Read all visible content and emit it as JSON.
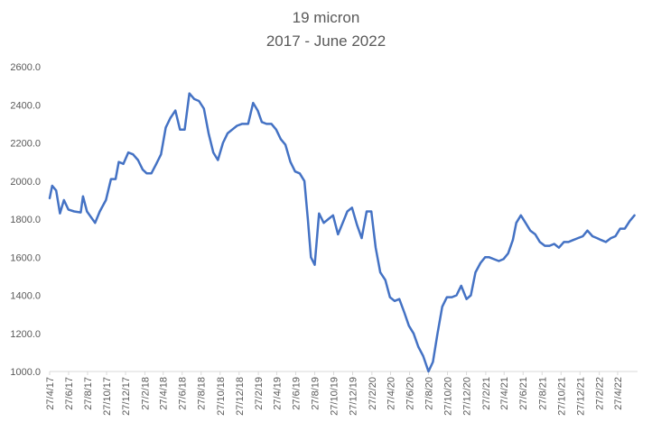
{
  "chart_data": {
    "type": "line",
    "title": "19 micron",
    "subtitle": "2017 - June 2022",
    "xlabel": "",
    "ylabel": "",
    "ylim": [
      1000,
      2600
    ],
    "yticks": [
      "1000.0",
      "1200.0",
      "1400.0",
      "1600.0",
      "1800.0",
      "2000.0",
      "2200.0",
      "2400.0",
      "2600.0"
    ],
    "xlim": [
      "2017-04-27",
      "2022-06-30"
    ],
    "xticks": [
      "27/4/17",
      "27/6/17",
      "27/8/17",
      "27/10/17",
      "27/12/17",
      "27/2/18",
      "27/4/18",
      "27/6/18",
      "27/8/18",
      "27/10/18",
      "27/12/18",
      "27/2/19",
      "27/4/19",
      "27/6/19",
      "27/8/19",
      "27/10/19",
      "27/12/19",
      "27/2/20",
      "27/4/20",
      "27/6/20",
      "27/8/20",
      "27/10/20",
      "27/12/20",
      "27/2/21",
      "27/4/21",
      "27/6/21",
      "27/8/21",
      "27/10/21",
      "27/12/21",
      "27/2/22",
      "27/4/22"
    ],
    "grid": false,
    "legend": "none",
    "line_color": "#4472c4",
    "series": [
      {
        "x": [
          "2017-04-27",
          "2017-05-05",
          "2017-05-18",
          "2017-05-30",
          "2017-06-12",
          "2017-06-26",
          "2017-07-15",
          "2017-08-05",
          "2017-08-12",
          "2017-08-25",
          "2017-09-20",
          "2017-10-05",
          "2017-10-25",
          "2017-11-10",
          "2017-11-25",
          "2017-12-05",
          "2017-12-20",
          "2018-01-05",
          "2018-01-20",
          "2018-02-05",
          "2018-02-20",
          "2018-03-05",
          "2018-03-20",
          "2018-04-05",
          "2018-04-20",
          "2018-05-05",
          "2018-05-20",
          "2018-06-05",
          "2018-06-20",
          "2018-07-05",
          "2018-07-20",
          "2018-08-05",
          "2018-08-20",
          "2018-09-05",
          "2018-09-20",
          "2018-10-05",
          "2018-10-20",
          "2018-11-05",
          "2018-11-20",
          "2018-12-05",
          "2018-12-20",
          "2019-01-05",
          "2019-01-25",
          "2019-02-10",
          "2019-02-25",
          "2019-03-10",
          "2019-03-25",
          "2019-04-10",
          "2019-04-25",
          "2019-05-10",
          "2019-05-25",
          "2019-06-10",
          "2019-06-25",
          "2019-07-10",
          "2019-07-25",
          "2019-08-05",
          "2019-08-15",
          "2019-08-27",
          "2019-09-10",
          "2019-09-25",
          "2019-10-10",
          "2019-10-25",
          "2019-11-10",
          "2019-11-25",
          "2019-12-10",
          "2019-12-25",
          "2020-01-10",
          "2020-01-25",
          "2020-02-10",
          "2020-02-25",
          "2020-03-10",
          "2020-03-25",
          "2020-04-10",
          "2020-04-25",
          "2020-05-10",
          "2020-05-25",
          "2020-06-10",
          "2020-06-25",
          "2020-07-10",
          "2020-07-25",
          "2020-08-10",
          "2020-08-27",
          "2020-09-10",
          "2020-09-25",
          "2020-10-10",
          "2020-10-25",
          "2020-11-10",
          "2020-11-25",
          "2020-12-10",
          "2020-12-27",
          "2021-01-10",
          "2021-01-25",
          "2021-02-10",
          "2021-02-25",
          "2021-03-10",
          "2021-03-25",
          "2021-04-10",
          "2021-04-25",
          "2021-05-10",
          "2021-05-25",
          "2021-06-05",
          "2021-06-20",
          "2021-07-05",
          "2021-07-20",
          "2021-08-05",
          "2021-08-20",
          "2021-09-05",
          "2021-09-20",
          "2021-10-05",
          "2021-10-20",
          "2021-11-05",
          "2021-11-20",
          "2021-12-05",
          "2021-12-20",
          "2022-01-05",
          "2022-01-20",
          "2022-02-05",
          "2022-02-20",
          "2022-03-05",
          "2022-03-20",
          "2022-04-05",
          "2022-04-20",
          "2022-05-05",
          "2022-05-20",
          "2022-06-05",
          "2022-06-20"
        ],
        "y": [
          1910,
          1975,
          1950,
          1830,
          1900,
          1850,
          1840,
          1835,
          1920,
          1840,
          1780,
          1840,
          1900,
          2010,
          2010,
          2100,
          2090,
          2150,
          2140,
          2110,
          2060,
          2040,
          2040,
          2090,
          2140,
          2280,
          2330,
          2370,
          2270,
          2270,
          2460,
          2430,
          2420,
          2380,
          2250,
          2150,
          2110,
          2200,
          2250,
          2270,
          2290,
          2300,
          2300,
          2410,
          2370,
          2310,
          2300,
          2300,
          2270,
          2220,
          2190,
          2100,
          2050,
          2040,
          2000,
          1800,
          1600,
          1560,
          1830,
          1780,
          1800,
          1820,
          1720,
          1780,
          1840,
          1860,
          1770,
          1700,
          1840,
          1840,
          1650,
          1520,
          1480,
          1390,
          1370,
          1380,
          1310,
          1240,
          1200,
          1130,
          1080,
          1000,
          1050,
          1200,
          1340,
          1390,
          1390,
          1400,
          1450,
          1380,
          1400,
          1520,
          1570,
          1600,
          1600,
          1590,
          1580,
          1590,
          1620,
          1690,
          1780,
          1820,
          1780,
          1740,
          1720,
          1680,
          1660,
          1660,
          1670,
          1650,
          1680,
          1680,
          1690,
          1700,
          1710,
          1740,
          1710,
          1700,
          1690,
          1680,
          1700,
          1710,
          1750,
          1750,
          1790,
          1820
        ]
      }
    ]
  }
}
